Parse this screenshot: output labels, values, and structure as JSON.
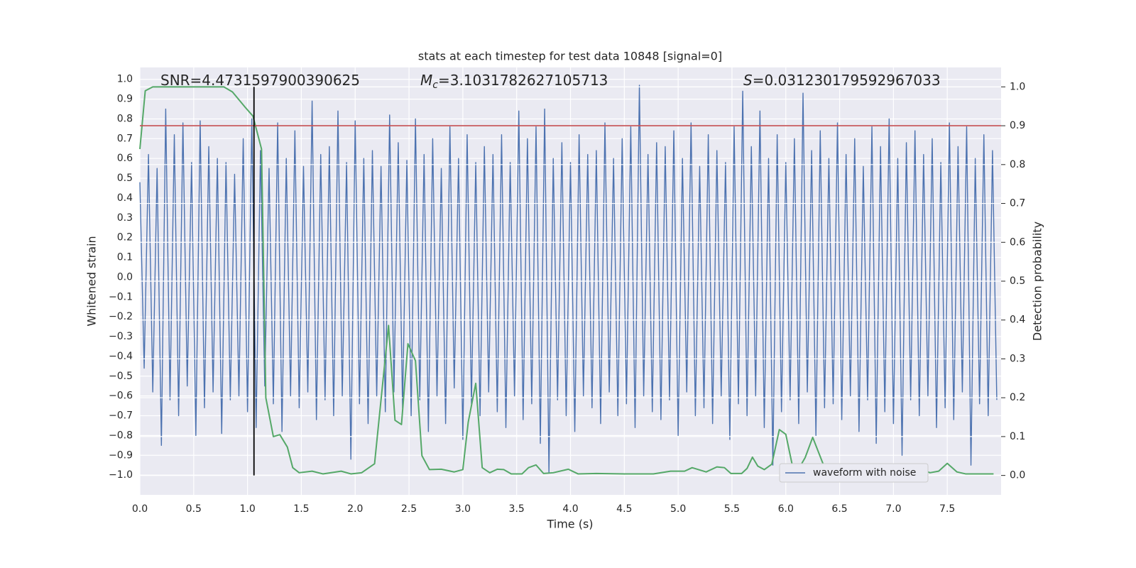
{
  "chart_data": {
    "type": "line",
    "title": "stats at each timestep for test data 10848 [signal=0]",
    "x_label": "Time (s)",
    "y_label": "Whitened strain",
    "y2_label": "Detection probability",
    "annotations": [
      {
        "text": "SNR=4.4731597900390625"
      },
      {
        "symbol": "M",
        "subscript": "c",
        "text": "=3.1031782627105713"
      },
      {
        "symbol": "S",
        "text": "=0.031230179592967033"
      }
    ],
    "xlim": [
      0,
      8
    ],
    "ylim": [
      -1.1,
      1.06
    ],
    "y2lim": [
      -0.05,
      1.05
    ],
    "xticks": [
      {
        "value": 0,
        "label": "0.0"
      },
      0.5,
      {
        "value": 1,
        "label": "1.0"
      },
      1.5,
      {
        "value": 2,
        "label": "2.0"
      },
      2.5,
      {
        "value": 3,
        "label": "3.0"
      },
      3.5,
      {
        "value": 4,
        "label": "4.0"
      },
      4.5,
      {
        "value": 5,
        "label": "5.0"
      },
      5.5,
      {
        "value": 6,
        "label": "6.0"
      },
      6.5,
      {
        "value": 7,
        "label": "7.0"
      },
      7.5
    ],
    "yticks": [
      {
        "value": -1,
        "label": "−1.0"
      },
      {
        "value": -0.9,
        "label": "−0.9"
      },
      {
        "value": -0.8,
        "label": "−0.8"
      },
      {
        "value": -0.7,
        "label": "−0.7"
      },
      {
        "value": -0.6,
        "label": "−0.6"
      },
      {
        "value": -0.5,
        "label": "−0.5"
      },
      {
        "value": -0.4,
        "label": "−0.4"
      },
      {
        "value": -0.3,
        "label": "−0.3"
      },
      {
        "value": -0.2,
        "label": "−0.2"
      },
      {
        "value": -0.1,
        "label": "−0.1"
      },
      {
        "value": 0,
        "label": "0.0"
      },
      0.1,
      0.2,
      0.3,
      0.4,
      0.5,
      0.6,
      0.7,
      0.8,
      0.9,
      {
        "value": 1,
        "label": "1.0"
      }
    ],
    "y2ticks": [
      {
        "value": 0,
        "label": "0.0"
      },
      0.1,
      0.2,
      0.3,
      0.4,
      0.5,
      0.6,
      0.7,
      0.8,
      0.9,
      {
        "value": 1,
        "label": "1.0"
      }
    ],
    "grid": true,
    "legend": "lower right",
    "threshold": {
      "y2": 0.9,
      "color": "#c44e52"
    },
    "marker_line": {
      "x": 1.06,
      "y2": [
        0,
        1
      ],
      "color": "#000000"
    },
    "series": [
      {
        "name": "waveform with noise",
        "color": "#4c72b0",
        "x": [
          0,
          0.04,
          0.08,
          0.12,
          0.16,
          0.2,
          0.24,
          0.28,
          0.32,
          0.36,
          0.4,
          0.44,
          0.48,
          0.52,
          0.56,
          0.6,
          0.64,
          0.68,
          0.72,
          0.76,
          0.8,
          0.84,
          0.88,
          0.92,
          0.96,
          1,
          1.04,
          1.08,
          1.12,
          1.16,
          1.2,
          1.24,
          1.28,
          1.32,
          1.36,
          1.4,
          1.44,
          1.48,
          1.52,
          1.56,
          1.6,
          1.64,
          1.68,
          1.72,
          1.76,
          1.8,
          1.84,
          1.88,
          1.92,
          1.96,
          2,
          2.04,
          2.08,
          2.12,
          2.16,
          2.2,
          2.24,
          2.28,
          2.32,
          2.36,
          2.4,
          2.44,
          2.48,
          2.52,
          2.56,
          2.6,
          2.64,
          2.68,
          2.72,
          2.76,
          2.8,
          2.84,
          2.88,
          2.92,
          2.96,
          3,
          3.04,
          3.08,
          3.12,
          3.16,
          3.2,
          3.24,
          3.28,
          3.32,
          3.36,
          3.4,
          3.44,
          3.48,
          3.52,
          3.56,
          3.6,
          3.64,
          3.68,
          3.72,
          3.76,
          3.8,
          3.84,
          3.88,
          3.92,
          3.96,
          4,
          4.04,
          4.08,
          4.12,
          4.16,
          4.2,
          4.24,
          4.28,
          4.32,
          4.36,
          4.4,
          4.44,
          4.48,
          4.52,
          4.56,
          4.6,
          4.64,
          4.68,
          4.72,
          4.76,
          4.8,
          4.84,
          4.88,
          4.92,
          4.96,
          5,
          5.04,
          5.08,
          5.12,
          5.16,
          5.2,
          5.24,
          5.28,
          5.32,
          5.36,
          5.4,
          5.44,
          5.48,
          5.52,
          5.56,
          5.6,
          5.64,
          5.68,
          5.72,
          5.76,
          5.8,
          5.84,
          5.88,
          5.92,
          5.96,
          6,
          6.04,
          6.08,
          6.12,
          6.16,
          6.2,
          6.24,
          6.28,
          6.32,
          6.36,
          6.4,
          6.44,
          6.48,
          6.52,
          6.56,
          6.6,
          6.64,
          6.68,
          6.72,
          6.76,
          6.8,
          6.84,
          6.88,
          6.92,
          6.96,
          7,
          7.04,
          7.08,
          7.12,
          7.16,
          7.2,
          7.24,
          7.28,
          7.32,
          7.36,
          7.4,
          7.44,
          7.48,
          7.52,
          7.56,
          7.6,
          7.64,
          7.68,
          7.72,
          7.76,
          7.8,
          7.84,
          7.88,
          7.92,
          7.96
        ],
        "values": [
          0.48,
          -0.46,
          0.62,
          -0.58,
          0.55,
          -0.85,
          0.85,
          -0.62,
          0.72,
          -0.7,
          0.78,
          -0.55,
          0.58,
          -0.8,
          0.79,
          -0.66,
          0.66,
          -0.58,
          0.6,
          -0.79,
          0.58,
          -0.62,
          0.52,
          -0.6,
          0.7,
          -0.68,
          0.8,
          -0.76,
          0.64,
          -0.55,
          0.55,
          -0.64,
          0.78,
          -0.78,
          0.6,
          -0.6,
          0.74,
          -0.66,
          0.56,
          -0.58,
          0.89,
          -0.72,
          0.62,
          -0.62,
          0.66,
          -0.7,
          0.84,
          -0.6,
          0.58,
          -0.92,
          0.79,
          -0.64,
          0.6,
          -0.74,
          0.64,
          -0.6,
          0.56,
          -0.68,
          0.82,
          -0.58,
          0.68,
          -0.66,
          0.59,
          -0.7,
          0.8,
          -0.62,
          0.62,
          -0.78,
          0.7,
          -0.6,
          0.55,
          -0.74,
          0.76,
          -0.56,
          0.6,
          -0.82,
          0.72,
          -0.64,
          0.58,
          -0.7,
          0.66,
          -0.58,
          0.62,
          -0.68,
          0.72,
          -0.76,
          0.58,
          -0.6,
          0.84,
          -0.72,
          0.7,
          -0.64,
          0.76,
          -0.84,
          0.85,
          -0.99,
          0.6,
          -0.62,
          0.68,
          -0.7,
          0.58,
          -0.78,
          0.72,
          -0.6,
          0.62,
          -0.66,
          0.64,
          -0.74,
          0.78,
          -0.58,
          0.6,
          -0.7,
          0.7,
          -0.64,
          0.76,
          -0.76,
          0.97,
          -0.6,
          0.62,
          -0.68,
          0.68,
          -0.72,
          0.66,
          -0.62,
          0.74,
          -0.8,
          0.6,
          -0.58,
          0.78,
          -0.7,
          0.56,
          -0.66,
          0.72,
          -0.74,
          0.64,
          -0.6,
          0.58,
          -0.82,
          0.76,
          -0.64,
          0.94,
          -0.7,
          0.66,
          -0.6,
          0.84,
          -0.76,
          0.6,
          -0.95,
          0.72,
          -0.68,
          0.58,
          -0.62,
          0.7,
          -0.74,
          0.93,
          -0.58,
          0.64,
          -0.8,
          0.74,
          -0.66,
          0.6,
          -0.64,
          0.78,
          -0.72,
          0.62,
          -0.6,
          0.7,
          -0.78,
          0.56,
          -0.62,
          0.76,
          -0.84,
          0.66,
          -0.68,
          0.8,
          -0.74,
          0.6,
          -0.9,
          0.68,
          -0.62,
          0.74,
          -0.7,
          0.62,
          -0.6,
          0.7,
          -0.76,
          0.58,
          -0.66,
          0.78,
          -0.72,
          0.66,
          -0.58,
          0.76,
          -0.95,
          0.6,
          -0.64,
          0.72,
          -0.7,
          0.64,
          -0.62
        ]
      },
      {
        "color": "#55a868",
        "axis": "y2",
        "x": [
          0,
          0.05,
          0.12,
          0.78,
          0.86,
          0.98,
          1.05,
          1.13,
          1.17,
          1.24,
          1.3,
          1.37,
          1.42,
          1.48,
          1.6,
          1.7,
          1.87,
          1.96,
          2.06,
          2.18,
          2.31,
          2.37,
          2.43,
          2.49,
          2.56,
          2.62,
          2.69,
          2.8,
          2.92,
          3,
          3.05,
          3.12,
          3.18,
          3.25,
          3.32,
          3.38,
          3.45,
          3.55,
          3.61,
          3.68,
          3.75,
          3.84,
          3.98,
          4.07,
          4.24,
          4.5,
          4.77,
          4.93,
          5.06,
          5.13,
          5.26,
          5.36,
          5.43,
          5.49,
          5.59,
          5.64,
          5.69,
          5.74,
          5.8,
          5.87,
          5.94,
          6,
          6.06,
          6.13,
          6.18,
          6.25,
          6.37,
          6.45,
          6.55,
          6.68,
          6.81,
          6.94,
          7.04,
          7.17,
          7.26,
          7.34,
          7.42,
          7.5,
          7.59,
          7.67,
          7.93
        ],
        "values": [
          0.84,
          0.99,
          1,
          1,
          0.987,
          0.947,
          0.925,
          0.84,
          0.2,
          0.1,
          0.105,
          0.073,
          0.02,
          0.007,
          0.011,
          0.004,
          0.011,
          0.004,
          0.007,
          0.03,
          0.386,
          0.142,
          0.131,
          0.339,
          0.295,
          0.051,
          0.015,
          0.016,
          0.009,
          0.015,
          0.137,
          0.237,
          0.02,
          0.007,
          0.016,
          0.015,
          0.004,
          0.004,
          0.02,
          0.027,
          0.005,
          0.007,
          0.016,
          0.004,
          0.005,
          0.004,
          0.004,
          0.011,
          0.011,
          0.02,
          0.009,
          0.022,
          0.02,
          0.005,
          0.005,
          0.018,
          0.047,
          0.024,
          0.015,
          0.029,
          0.118,
          0.106,
          0.027,
          0.022,
          0.046,
          0.098,
          0.013,
          0.005,
          0.005,
          0.002,
          0.004,
          0.009,
          0.005,
          0.007,
          0.015,
          0.007,
          0.011,
          0.031,
          0.009,
          0.004,
          0.004
        ]
      }
    ]
  }
}
